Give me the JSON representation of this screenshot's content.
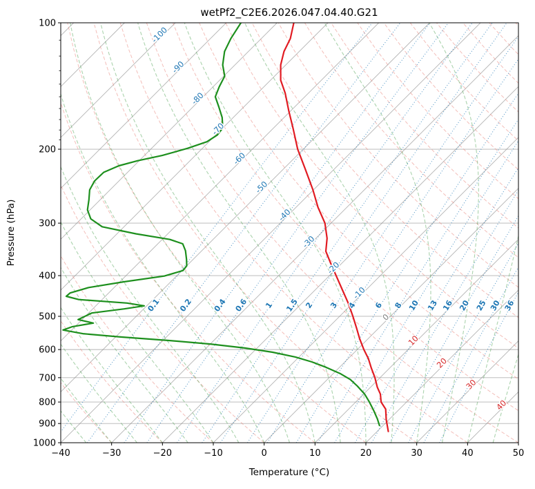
{
  "title": "wetPf2_C2E6.2026.047.04.40.G21",
  "axes": {
    "x_label": "Temperature (°C)",
    "y_label": "Pressure (hPa)",
    "x_ticks": [
      -40,
      -30,
      -20,
      -10,
      0,
      10,
      20,
      30,
      40,
      50
    ],
    "y_ticks": [
      100,
      200,
      300,
      400,
      500,
      600,
      700,
      800,
      900,
      1000
    ],
    "y_minor_ticks": [
      110,
      120,
      130,
      140,
      150,
      160,
      170,
      180,
      190
    ],
    "x_range": [
      -40,
      50
    ],
    "p_range": [
      100,
      1000
    ]
  },
  "chart_data": {
    "type": "line",
    "plot_kind": "skew-t-log-p",
    "skew_degrees": 45,
    "title": "wetPf2_C2E6.2026.047.04.40.G21",
    "xlabel": "Temperature (°C)",
    "ylabel": "Pressure (hPa)",
    "series": [
      {
        "name": "temperature",
        "color": "#e11b22",
        "units": [
          "hPa",
          "degC"
        ],
        "points": [
          [
            100,
            -76.7
          ],
          [
            109,
            -74.3
          ],
          [
            117,
            -73
          ],
          [
            126,
            -71
          ],
          [
            137,
            -68
          ],
          [
            147,
            -64.6
          ],
          [
            162,
            -60.4
          ],
          [
            178,
            -56.2
          ],
          [
            200,
            -51.1
          ],
          [
            223,
            -45.7
          ],
          [
            250,
            -40.1
          ],
          [
            275,
            -35.7
          ],
          [
            300,
            -31.2
          ],
          [
            326,
            -27.8
          ],
          [
            350,
            -25.5
          ],
          [
            379,
            -21.5
          ],
          [
            400,
            -18.7
          ],
          [
            433,
            -14.6
          ],
          [
            466,
            -10.8
          ],
          [
            500,
            -7.4
          ],
          [
            534,
            -4.3
          ],
          [
            565,
            -1.7
          ],
          [
            600,
            1.3
          ],
          [
            631,
            4
          ],
          [
            664,
            6.4
          ],
          [
            700,
            9
          ],
          [
            737,
            11.3
          ],
          [
            766,
            13.3
          ],
          [
            800,
            15
          ],
          [
            832,
            17.3
          ],
          [
            882,
            19.5
          ],
          [
            916,
            21.1
          ],
          [
            940,
            22.2
          ]
        ]
      },
      {
        "name": "dewpoint",
        "color": "#1d8f1d",
        "units": [
          "hPa",
          "degC"
        ],
        "points": [
          [
            100,
            -87.1
          ],
          [
            109,
            -86
          ],
          [
            117,
            -84.7
          ],
          [
            126,
            -82.4
          ],
          [
            134,
            -79.8
          ],
          [
            142,
            -78.8
          ],
          [
            150,
            -77.6
          ],
          [
            159,
            -74.8
          ],
          [
            168,
            -72.2
          ],
          [
            178,
            -70
          ],
          [
            185,
            -69.7
          ],
          [
            192,
            -70.4
          ],
          [
            199,
            -72.9
          ],
          [
            207,
            -76.5
          ],
          [
            213,
            -80.3
          ],
          [
            219,
            -83
          ],
          [
            227,
            -84.7
          ],
          [
            238,
            -84.8
          ],
          [
            250,
            -84
          ],
          [
            264,
            -82.2
          ],
          [
            279,
            -80.5
          ],
          [
            293,
            -78.1
          ],
          [
            306,
            -74.3
          ],
          [
            318,
            -66.3
          ],
          [
            328,
            -58.5
          ],
          [
            336,
            -55.1
          ],
          [
            349,
            -53.2
          ],
          [
            366,
            -51.3
          ],
          [
            379,
            -50
          ],
          [
            389,
            -49.8
          ],
          [
            401,
            -52.4
          ],
          [
            414,
            -59.3
          ],
          [
            427,
            -65
          ],
          [
            440,
            -67.6
          ],
          [
            448,
            -67.7
          ],
          [
            456,
            -64.6
          ],
          [
            465,
            -54.4
          ],
          [
            472,
            -50.5
          ],
          [
            480,
            -53.8
          ],
          [
            491,
            -59.4
          ],
          [
            509,
            -60.8
          ],
          [
            519,
            -57.1
          ],
          [
            529,
            -60.5
          ],
          [
            539,
            -61.7
          ],
          [
            550,
            -57.1
          ],
          [
            560,
            -49
          ],
          [
            571,
            -38.8
          ],
          [
            582,
            -30
          ],
          [
            595,
            -22.4
          ],
          [
            609,
            -16.1
          ],
          [
            625,
            -10.7
          ],
          [
            642,
            -6.5
          ],
          [
            661,
            -2.7
          ],
          [
            684,
            1.3
          ],
          [
            707,
            4.5
          ],
          [
            733,
            7.2
          ],
          [
            766,
            10.2
          ],
          [
            800,
            12.7
          ],
          [
            838,
            15.2
          ],
          [
            878,
            17.6
          ],
          [
            910,
            19.3
          ]
        ]
      }
    ],
    "isotherms": {
      "color": "#8c8c8c",
      "values": [
        -120,
        -110,
        -100,
        -90,
        -80,
        -70,
        -60,
        -50,
        -40,
        -30,
        -20,
        -10,
        0,
        10,
        20,
        30,
        40,
        50
      ],
      "label_values": [
        -100,
        -90,
        -80,
        -70,
        -60,
        -50,
        -40,
        -30,
        -20,
        -10,
        0,
        10,
        20,
        30,
        40
      ],
      "label_colors": {
        "negative": "#1f77b4",
        "zero": "#7f7f7f",
        "positive": "#d62728"
      }
    },
    "dry_adiabats": {
      "color": "#e98980",
      "theta_values_c": [
        -40,
        -30,
        -20,
        -10,
        0,
        10,
        20,
        30,
        40,
        50,
        60,
        70,
        80,
        90,
        100,
        110,
        120,
        130,
        140,
        150,
        160,
        170,
        180,
        190,
        200
      ]
    },
    "moist_adiabats": {
      "color": "#58a85c",
      "start_temps_c_at_1000hpa": [
        -40,
        -35,
        -30,
        -25,
        -20,
        -15,
        -10,
        -5,
        0,
        5,
        10,
        15,
        20,
        25,
        30,
        35,
        40,
        45,
        50,
        55,
        60
      ]
    },
    "mixing_ratio": {
      "color": "#1f77b4",
      "values_g_per_kg": [
        0.1,
        0.2,
        0.4,
        0.6,
        1,
        1.5,
        2,
        3,
        4,
        6,
        8,
        10,
        13,
        16,
        20,
        25,
        30,
        36
      ],
      "label_pressure_hpa": 469
    },
    "grid_color": "#8c8c8c",
    "legend": "none"
  }
}
